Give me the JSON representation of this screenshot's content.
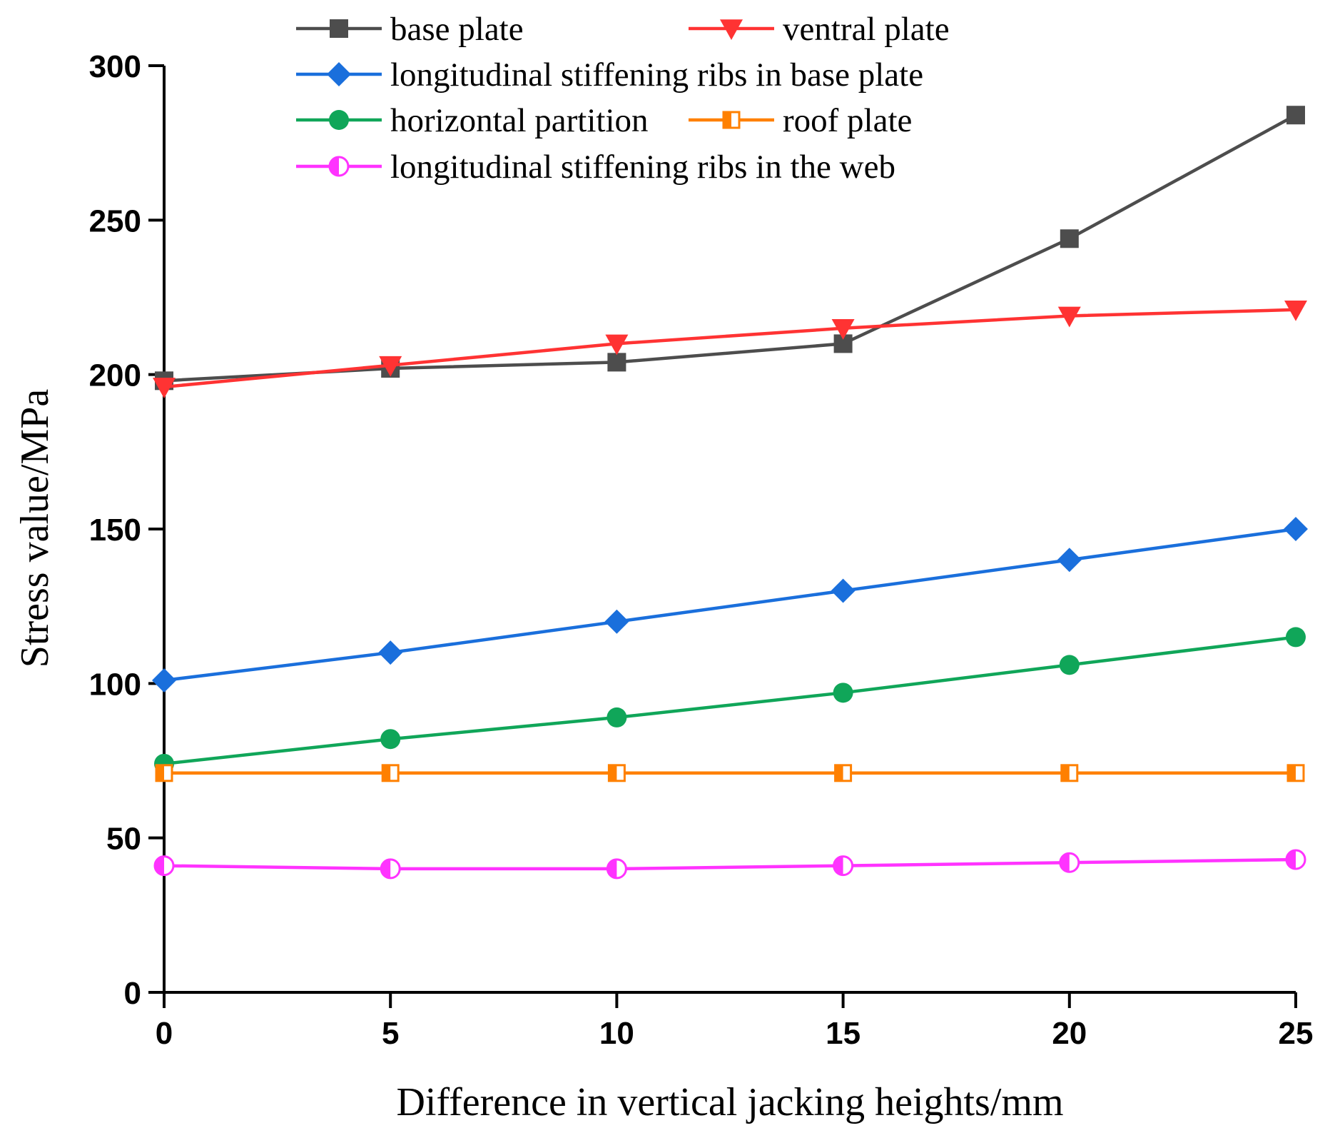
{
  "chart_data": {
    "type": "line",
    "title": "",
    "xlabel": "Difference in vertical jacking heights/mm",
    "ylabel": "Stress value/MPa",
    "xlim": [
      0,
      25
    ],
    "ylim": [
      0,
      300
    ],
    "x": [
      0,
      5,
      10,
      15,
      20,
      25
    ],
    "xticks": [
      "0",
      "5",
      "10",
      "15",
      "20",
      "25"
    ],
    "yticks": [
      "0",
      "50",
      "100",
      "150",
      "200",
      "250",
      "300"
    ],
    "grid": false,
    "legend_position": "top",
    "series": [
      {
        "name": "base plate",
        "color": "#4d4d4d",
        "marker": "square",
        "values": [
          198,
          202,
          204,
          210,
          244,
          284
        ]
      },
      {
        "name": "ventral plate",
        "color": "#ff3333",
        "marker": "triangle-down",
        "values": [
          196,
          203,
          210,
          215,
          219,
          221
        ]
      },
      {
        "name": "longitudinal stiffening ribs in base plate",
        "color": "#1a6fdc",
        "marker": "diamond",
        "values": [
          101,
          110,
          120,
          130,
          140,
          150
        ]
      },
      {
        "name": "horizontal partition",
        "color": "#10a659",
        "marker": "circle",
        "values": [
          74,
          82,
          89,
          97,
          106,
          115
        ]
      },
      {
        "name": "roof plate",
        "color": "#ff8000",
        "marker": "half-square",
        "values": [
          71,
          71,
          71,
          71,
          71,
          71
        ]
      },
      {
        "name": "longitudinal stiffening ribs in the web",
        "color": "#ff33ff",
        "marker": "half-circle",
        "values": [
          41,
          40,
          40,
          41,
          42,
          43
        ]
      }
    ]
  }
}
